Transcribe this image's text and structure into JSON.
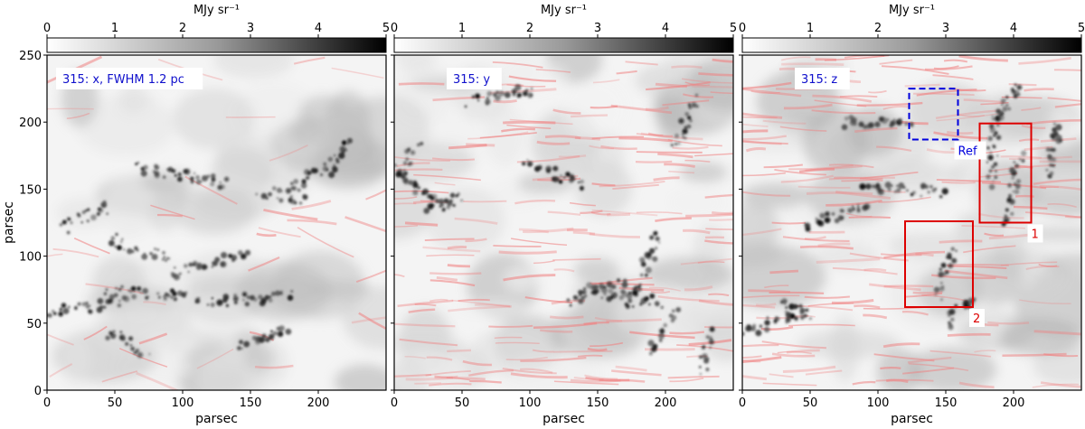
{
  "chart_data": [
    {
      "type": "heatmap",
      "id": "x",
      "tag": "315: x, FWHM 1.2 pc",
      "xlabel": "parsec",
      "ylabel": "parsec",
      "xlim": [
        0,
        250
      ],
      "ylim": [
        0,
        250
      ],
      "xticks": [
        0,
        50,
        100,
        150,
        200
      ],
      "yticks": [
        0,
        50,
        100,
        150,
        200,
        250
      ],
      "colorbar": {
        "label": "MJy sr⁻¹",
        "range": [
          0,
          5
        ],
        "ticks": [
          0,
          1,
          2,
          3,
          4,
          5
        ]
      },
      "boxes": []
    },
    {
      "type": "heatmap",
      "id": "y",
      "tag": "315: y",
      "xlabel": "parsec",
      "ylabel": "",
      "xlim": [
        0,
        250
      ],
      "ylim": [
        0,
        250
      ],
      "xticks": [
        0,
        50,
        100,
        150,
        200
      ],
      "yticks": [
        0,
        50,
        100,
        150,
        200,
        250
      ],
      "colorbar": {
        "label": "MJy sr⁻¹",
        "range": [
          0,
          5
        ],
        "ticks": [
          0,
          1,
          2,
          3,
          4,
          5
        ]
      },
      "boxes": []
    },
    {
      "type": "heatmap",
      "id": "z",
      "tag": "315: z",
      "xlabel": "parsec",
      "ylabel": "",
      "xlim": [
        0,
        250
      ],
      "ylim": [
        0,
        250
      ],
      "xticks": [
        0,
        50,
        100,
        150,
        200
      ],
      "yticks": [
        0,
        50,
        100,
        150,
        200,
        250
      ],
      "colorbar": {
        "label": "MJy sr⁻¹",
        "range": [
          0,
          5
        ],
        "ticks": [
          0,
          1,
          2,
          3,
          4,
          5
        ]
      },
      "boxes": [
        {
          "label": "Ref",
          "x0": 123,
          "x1": 159,
          "y0": 187,
          "y1": 225,
          "color": "#0000dd",
          "style": "dashed"
        },
        {
          "label": "1",
          "x0": 175,
          "x1": 213,
          "y0": 125,
          "y1": 199,
          "color": "#dd0000",
          "style": "solid"
        },
        {
          "label": "2",
          "x0": 120,
          "x1": 170,
          "y0": 62,
          "y1": 126,
          "color": "#dd0000",
          "style": "solid"
        }
      ]
    }
  ]
}
